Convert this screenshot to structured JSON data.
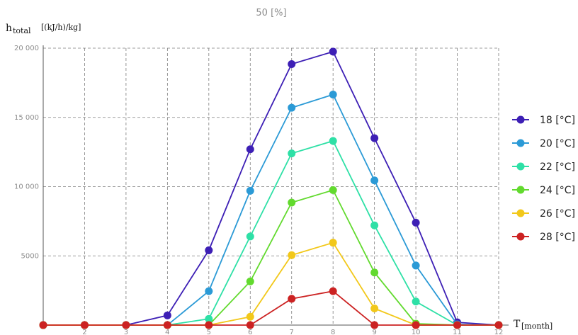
{
  "chart_data": {
    "type": "line",
    "title": "50 [%]",
    "ylabel_main": "h",
    "ylabel_sub": "total",
    "ylabel_unit": "[(kJ/h)/kg]",
    "xlabel_main": "T",
    "xlabel_unit": "[month]",
    "x": [
      1,
      2,
      3,
      4,
      5,
      6,
      7,
      8,
      9,
      10,
      11,
      12
    ],
    "xlim": [
      1,
      12
    ],
    "ylim": [
      0,
      20000
    ],
    "x_ticks": [
      "2",
      "3",
      "4",
      "5",
      "6",
      "7",
      "8",
      "9",
      "10",
      "11",
      "12"
    ],
    "y_ticks": [
      {
        "value": 5000,
        "label": "5000"
      },
      {
        "value": 10000,
        "label": "10 000"
      },
      {
        "value": 15000,
        "label": "15 000"
      },
      {
        "value": 20000,
        "label": "20 000"
      }
    ],
    "grid": true,
    "legend_position": "right",
    "series": [
      {
        "name": "18 [°C]",
        "color": "#3d1fb5",
        "values": [
          0,
          0,
          0,
          700,
          5400,
          12700,
          18850,
          19750,
          13500,
          7400,
          200,
          0
        ]
      },
      {
        "name": "20 [°C]",
        "color": "#2b9ad6",
        "values": [
          0,
          0,
          0,
          0,
          2450,
          9700,
          15700,
          16650,
          10450,
          4300,
          50,
          0
        ]
      },
      {
        "name": "22 [°C]",
        "color": "#2ee0a6",
        "values": [
          0,
          0,
          0,
          0,
          450,
          6400,
          12400,
          13300,
          7200,
          1700,
          0,
          0
        ]
      },
      {
        "name": "24 [°C]",
        "color": "#62da2e",
        "values": [
          0,
          0,
          0,
          0,
          0,
          3150,
          8850,
          9750,
          3800,
          100,
          0,
          0
        ]
      },
      {
        "name": "26 [°C]",
        "color": "#f2c81a",
        "values": [
          0,
          0,
          0,
          0,
          0,
          600,
          5050,
          5950,
          1200,
          0,
          0,
          0
        ]
      },
      {
        "name": "28 [°C]",
        "color": "#cc2222",
        "values": [
          0,
          0,
          0,
          0,
          0,
          0,
          1900,
          2450,
          0,
          0,
          0,
          0
        ]
      }
    ]
  }
}
